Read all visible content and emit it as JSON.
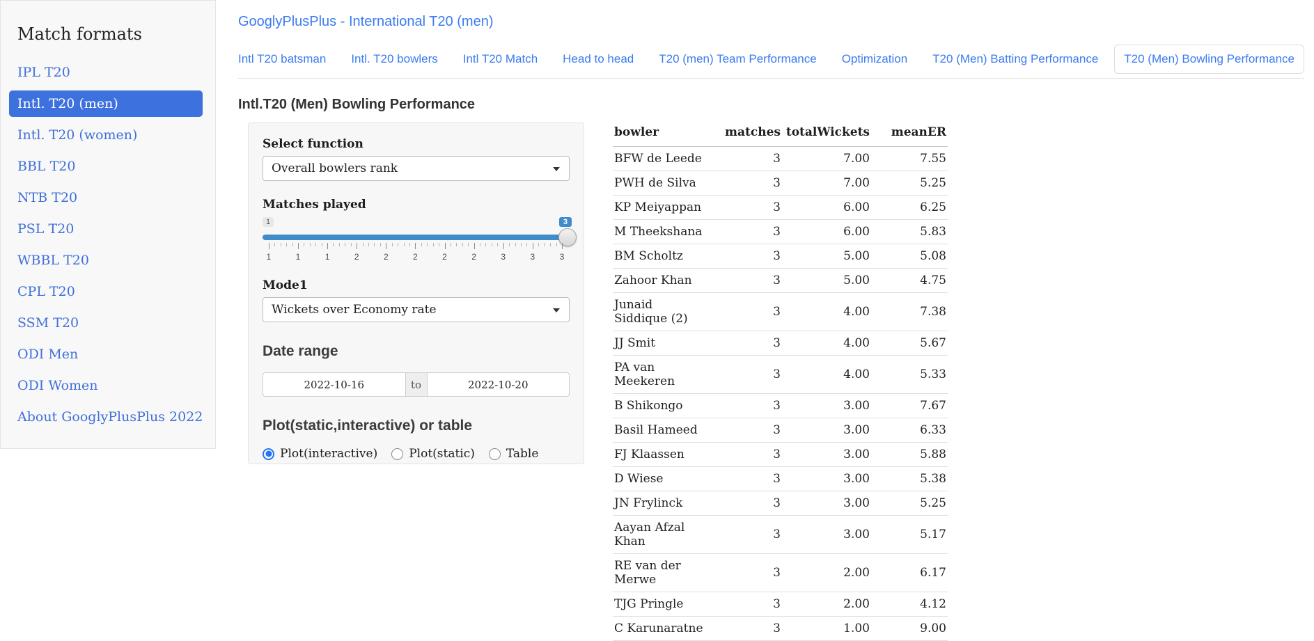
{
  "colors": {
    "accent_blue": "#3a7bf2",
    "sidebar_link_blue": "#3e6fd9",
    "sidebar_active_bg": "#3d72de",
    "slider_blue": "#428bca",
    "radio_blue": "#2273f5"
  },
  "sidebar": {
    "title": "Match formats",
    "items": [
      {
        "label": "IPL T20",
        "active": false
      },
      {
        "label": "Intl. T20 (men)",
        "active": true
      },
      {
        "label": "Intl. T20 (women)",
        "active": false
      },
      {
        "label": "BBL T20",
        "active": false
      },
      {
        "label": "NTB T20",
        "active": false
      },
      {
        "label": "PSL T20",
        "active": false
      },
      {
        "label": "WBBL T20",
        "active": false
      },
      {
        "label": "CPL T20",
        "active": false
      },
      {
        "label": "SSM T20",
        "active": false
      },
      {
        "label": "ODI Men",
        "active": false
      },
      {
        "label": "ODI Women",
        "active": false
      },
      {
        "label": "About GooglyPlusPlus 2022",
        "active": false
      }
    ]
  },
  "header": {
    "title": "GooglyPlusPlus - International T20 (men)"
  },
  "tabs": [
    {
      "label": "Intl T20 batsman",
      "active": false
    },
    {
      "label": "Intl. T20 bowlers",
      "active": false
    },
    {
      "label": "Intl T20 Match",
      "active": false
    },
    {
      "label": "Head to head",
      "active": false
    },
    {
      "label": "T20 (men) Team Performance",
      "active": false
    },
    {
      "label": "Optimization",
      "active": false
    },
    {
      "label": "T20 (Men) Batting Performance",
      "active": false
    },
    {
      "label": "T20 (Men) Bowling Performance",
      "active": true
    }
  ],
  "panel": {
    "section_title": "Intl.T20 (Men) Bowling Performance",
    "select_function": {
      "label": "Select function",
      "value": "Overall bowlers rank"
    },
    "matches_played": {
      "label": "Matches played",
      "min_label": "1",
      "value_label": "3",
      "grid_labels": [
        "1",
        "1",
        "1",
        "2",
        "2",
        "2",
        "2",
        "2",
        "3",
        "3",
        "3"
      ],
      "minor_ticks_per_gap": 4
    },
    "mode1": {
      "label": "Mode1",
      "value": "Wickets over Economy rate"
    },
    "date_range": {
      "label": "Date range",
      "from": "2022-10-16",
      "separator": "to",
      "to": "2022-10-20"
    },
    "plot_or_table": {
      "label": "Plot(static,interactive) or table",
      "options": [
        {
          "label": "Plot(interactive)",
          "selected": true
        },
        {
          "label": "Plot(static)",
          "selected": false
        },
        {
          "label": "Table",
          "selected": false
        }
      ]
    }
  },
  "table": {
    "columns": [
      "bowler",
      "matches",
      "totalWickets",
      "meanER"
    ],
    "rows": [
      [
        "BFW de Leede",
        "3",
        "7.00",
        "7.55"
      ],
      [
        "PWH de Silva",
        "3",
        "7.00",
        "5.25"
      ],
      [
        "KP Meiyappan",
        "3",
        "6.00",
        "6.25"
      ],
      [
        "M Theekshana",
        "3",
        "6.00",
        "5.83"
      ],
      [
        "BM Scholtz",
        "3",
        "5.00",
        "5.08"
      ],
      [
        "Zahoor Khan",
        "3",
        "5.00",
        "4.75"
      ],
      [
        "Junaid Siddique (2)",
        "3",
        "4.00",
        "7.38"
      ],
      [
        "JJ Smit",
        "3",
        "4.00",
        "5.67"
      ],
      [
        "PA van Meekeren",
        "3",
        "4.00",
        "5.33"
      ],
      [
        "B Shikongo",
        "3",
        "3.00",
        "7.67"
      ],
      [
        "Basil Hameed",
        "3",
        "3.00",
        "6.33"
      ],
      [
        "FJ Klaassen",
        "3",
        "3.00",
        "5.88"
      ],
      [
        "D Wiese",
        "3",
        "3.00",
        "5.38"
      ],
      [
        "JN Frylinck",
        "3",
        "3.00",
        "5.25"
      ],
      [
        "Aayan Afzal Khan",
        "3",
        "3.00",
        "5.17"
      ],
      [
        "RE van der Merwe",
        "3",
        "2.00",
        "6.17"
      ],
      [
        "TJG Pringle",
        "3",
        "2.00",
        "4.12"
      ],
      [
        "C Karunaratne",
        "3",
        "1.00",
        "9.00"
      ]
    ]
  }
}
